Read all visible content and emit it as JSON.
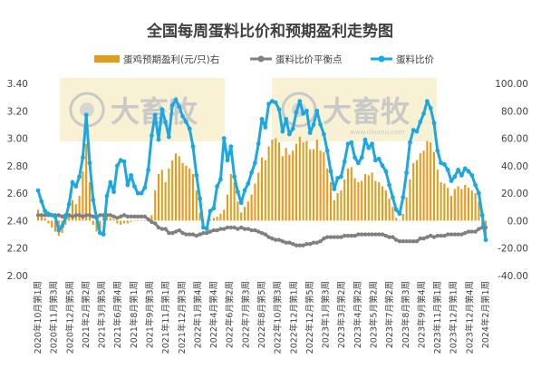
{
  "chart_data": {
    "type": "bar+line",
    "title": "全国每周蛋料比价和预期盈利走势图",
    "legend": [
      "蛋鸡预期盈利(元/只)右",
      "蛋料比价平衡点",
      "蛋料比价"
    ],
    "legend_position": "top",
    "grid": false,
    "y_left": {
      "min": 2.0,
      "max": 3.4,
      "step": 0.2,
      "ticks": [
        "2.00",
        "2.20",
        "2.40",
        "2.60",
        "2.80",
        "3.00",
        "3.20",
        "3.40"
      ]
    },
    "y_right": {
      "min": -40,
      "max": 100,
      "step": 20,
      "ticks": [
        "-40.00",
        "-20.00",
        "0.00",
        "20.00",
        "40.00",
        "60.00",
        "80.00",
        "100.00"
      ]
    },
    "x_labels": [
      "2020年10月第1周",
      "2020年11月第3周",
      "2020年12月第5周",
      "2021年2月第2周",
      "2021年3月第5周",
      "2021年6月第4周",
      "2021年8月第1周",
      "2021年9月第3周",
      "2021年11月第1周",
      "2021年12月第3周",
      "2022年1月第4周",
      "2022年4月第4周",
      "2022年6月第2周",
      "2022年7月第3周",
      "2022年8月第5周",
      "2022年10月第3周",
      "2022年12月第1周",
      "2022年12月第5周",
      "2023年1月第3周",
      "2023年3月第2周",
      "2023年4月第2周",
      "2023年5月第2周",
      "2023年7月第2周",
      "2023年8月第3周",
      "2023年9月第4周",
      "2023年11月第1周",
      "2023年12月第1周",
      "2023年12月第4周",
      "2024年2月第1周"
    ],
    "colors": {
      "profit_bars": "#e39b1b",
      "breakeven_line": "#808080",
      "ratio_line": "#1ba7e0",
      "watermark_box": "#f5ecc6"
    },
    "series": [
      {
        "name": "蛋料比价",
        "axis": "left",
        "values": [
          2.62,
          2.54,
          2.47,
          2.45,
          2.44,
          2.43,
          2.33,
          2.36,
          2.42,
          2.52,
          2.68,
          2.65,
          2.72,
          2.86,
          3.17,
          2.82,
          2.55,
          2.42,
          2.31,
          2.3,
          2.58,
          2.68,
          2.61,
          2.8,
          2.84,
          2.83,
          2.66,
          2.73,
          2.65,
          2.6,
          2.6,
          2.64,
          2.77,
          3.02,
          3.17,
          2.99,
          3.21,
          3.12,
          3.01,
          3.24,
          3.28,
          3.23,
          3.16,
          3.12,
          3.07,
          2.94,
          2.73,
          2.56,
          2.35,
          2.34,
          2.47,
          2.49,
          2.65,
          2.7,
          3.0,
          2.84,
          2.94,
          2.72,
          2.61,
          2.53,
          2.62,
          2.67,
          2.75,
          2.82,
          2.96,
          3.14,
          3.08,
          3.25,
          3.27,
          3.26,
          3.21,
          3.05,
          3.14,
          3.03,
          3.07,
          3.19,
          3.27,
          3.18,
          3.2,
          3.04,
          3.1,
          3.2,
          3.1,
          3.03,
          2.91,
          2.76,
          2.63,
          2.71,
          2.72,
          2.83,
          2.96,
          2.97,
          2.86,
          2.82,
          2.86,
          2.99,
          2.93,
          2.96,
          2.84,
          2.85,
          2.8,
          2.76,
          2.66,
          2.57,
          2.48,
          2.45,
          2.57,
          2.75,
          2.97,
          3.06,
          3.05,
          3.12,
          3.18,
          3.27,
          3.22,
          3.11,
          2.91,
          2.82,
          2.81,
          2.77,
          2.69,
          2.72,
          2.77,
          2.73,
          2.78,
          2.76,
          2.73,
          2.66,
          2.6,
          2.44,
          2.26
        ]
      },
      {
        "name": "蛋料比价平衡点",
        "axis": "left",
        "values": [
          2.44,
          2.44,
          2.44,
          2.44,
          2.44,
          2.44,
          2.44,
          2.43,
          2.44,
          2.44,
          2.43,
          2.44,
          2.44,
          2.43,
          2.44,
          2.44,
          2.43,
          2.43,
          2.44,
          2.44,
          2.44,
          2.44,
          2.43,
          2.42,
          2.43,
          2.44,
          2.43,
          2.43,
          2.43,
          2.43,
          2.43,
          2.43,
          2.41,
          2.39,
          2.38,
          2.35,
          2.34,
          2.34,
          2.31,
          2.31,
          2.32,
          2.33,
          2.31,
          2.3,
          2.3,
          2.3,
          2.29,
          2.3,
          2.31,
          2.31,
          2.32,
          2.33,
          2.33,
          2.34,
          2.34,
          2.35,
          2.35,
          2.35,
          2.34,
          2.35,
          2.34,
          2.34,
          2.33,
          2.33,
          2.32,
          2.31,
          2.3,
          2.28,
          2.27,
          2.26,
          2.26,
          2.25,
          2.24,
          2.24,
          2.23,
          2.22,
          2.22,
          2.22,
          2.23,
          2.23,
          2.24,
          2.24,
          2.25,
          2.27,
          2.28,
          2.28,
          2.28,
          2.28,
          2.28,
          2.29,
          2.29,
          2.29,
          2.29,
          2.3,
          2.3,
          2.3,
          2.3,
          2.3,
          2.3,
          2.3,
          2.3,
          2.29,
          2.28,
          2.28,
          2.26,
          2.25,
          2.25,
          2.25,
          2.25,
          2.25,
          2.25,
          2.27,
          2.27,
          2.28,
          2.29,
          2.28,
          2.29,
          2.29,
          2.29,
          2.3,
          2.3,
          2.3,
          2.3,
          2.3,
          2.31,
          2.32,
          2.32,
          2.32,
          2.34,
          2.35,
          2.35
        ]
      },
      {
        "name": "蛋鸡预期盈利(元/只)右",
        "axis": "right",
        "type": "bar",
        "values": [
          8,
          5,
          2,
          -2,
          -5,
          -8,
          -11,
          -9,
          -3,
          3,
          15,
          12,
          18,
          36,
          56,
          28,
          -3,
          -8,
          -6,
          3,
          4,
          2,
          1,
          -2,
          -3,
          -2,
          -2,
          -1,
          0,
          0,
          0,
          0,
          2,
          4,
          22,
          34,
          37,
          28,
          38,
          44,
          49,
          47,
          42,
          40,
          38,
          34,
          22,
          6,
          -1,
          0,
          1,
          2,
          3,
          5,
          8,
          19,
          34,
          28,
          14,
          6,
          10,
          14,
          19,
          27,
          35,
          46,
          44,
          54,
          59,
          60,
          57,
          47,
          53,
          48,
          51,
          56,
          61,
          57,
          58,
          52,
          52,
          59,
          51,
          50,
          38,
          28,
          15,
          20,
          22,
          30,
          38,
          39,
          31,
          28,
          29,
          34,
          33,
          35,
          29,
          28,
          25,
          22,
          16,
          10,
          2,
          0,
          5,
          17,
          30,
          42,
          44,
          49,
          51,
          58,
          57,
          50,
          37,
          28,
          27,
          24,
          18,
          23,
          25,
          23,
          26,
          24,
          22,
          20,
          14,
          -4,
          -10
        ]
      }
    ]
  }
}
